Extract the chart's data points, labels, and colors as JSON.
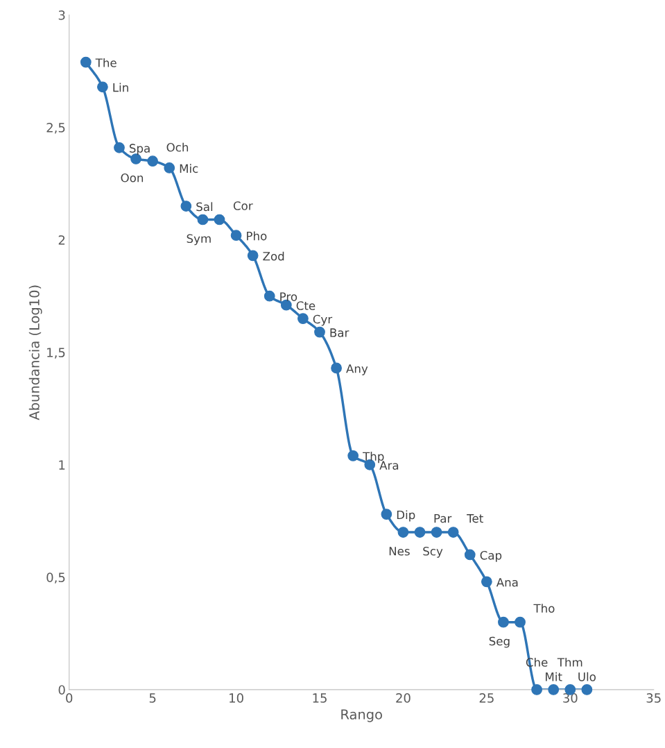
{
  "chart_data": {
    "type": "line",
    "xlabel": "Rango",
    "ylabel": "Abundancia (Log10)",
    "x": [
      1,
      2,
      3,
      4,
      5,
      6,
      7,
      8,
      9,
      10,
      11,
      12,
      13,
      14,
      15,
      16,
      17,
      18,
      19,
      20,
      21,
      22,
      23,
      24,
      25,
      26,
      27,
      28,
      29,
      30,
      31
    ],
    "series": [
      {
        "color": "#2e75b6",
        "values": [
          2.79,
          2.68,
          2.41,
          2.36,
          2.35,
          2.32,
          2.15,
          2.09,
          2.09,
          2.02,
          1.93,
          1.75,
          1.71,
          1.65,
          1.59,
          1.43,
          1.04,
          1.0,
          0.78,
          0.7,
          0.7,
          0.7,
          0.7,
          0.6,
          0.48,
          0.3,
          0.3,
          0,
          0,
          0,
          0
        ]
      }
    ],
    "marker": "circle",
    "line_style": "solid",
    "grid": false,
    "legend": false,
    "xlim": [
      0,
      35
    ],
    "xticks": [
      0,
      5,
      10,
      15,
      20,
      25,
      30,
      35
    ],
    "ylim": [
      0,
      3
    ],
    "yticks": [
      0,
      {
        "value": 0.5,
        "label": "0,5"
      },
      1,
      {
        "value": 1.5,
        "label": "1,5"
      },
      2,
      {
        "value": 2.5,
        "label": "2,5"
      },
      3
    ],
    "annotations": [
      {
        "text": "The",
        "x": 1,
        "y": 2.79
      },
      {
        "text": "Lin",
        "x": 2,
        "y": 2.68
      },
      {
        "text": "Spa",
        "x": 3,
        "y": 2.41
      },
      {
        "text": "Oon",
        "x": 4,
        "y": 2.36
      },
      {
        "text": "Och",
        "x": 5,
        "y": 2.35
      },
      {
        "text": "Mic",
        "x": 6,
        "y": 2.32
      },
      {
        "text": "Sal",
        "x": 7,
        "y": 2.15
      },
      {
        "text": "Sym",
        "x": 8,
        "y": 2.09
      },
      {
        "text": "Cor",
        "x": 9,
        "y": 2.09
      },
      {
        "text": "Pho",
        "x": 10,
        "y": 2.02
      },
      {
        "text": "Zod",
        "x": 11,
        "y": 1.93
      },
      {
        "text": "Pro",
        "x": 12,
        "y": 1.75
      },
      {
        "text": "Cte",
        "x": 13,
        "y": 1.71
      },
      {
        "text": "Cyr",
        "x": 14,
        "y": 1.65
      },
      {
        "text": "Bar",
        "x": 15,
        "y": 1.59
      },
      {
        "text": "Any",
        "x": 16,
        "y": 1.43
      },
      {
        "text": "Thp",
        "x": 17,
        "y": 1.04
      },
      {
        "text": "Ara",
        "x": 18,
        "y": 1.0
      },
      {
        "text": "Dip",
        "x": 19,
        "y": 0.78
      },
      {
        "text": "Nes",
        "x": 20,
        "y": 0.7
      },
      {
        "text": "Par",
        "x": 21,
        "y": 0.7
      },
      {
        "text": "Scy",
        "x": 22,
        "y": 0.7
      },
      {
        "text": "Tet",
        "x": 23,
        "y": 0.7
      },
      {
        "text": "Cap",
        "x": 24,
        "y": 0.6
      },
      {
        "text": "Ana",
        "x": 25,
        "y": 0.48
      },
      {
        "text": "Seg",
        "x": 26,
        "y": 0.3
      },
      {
        "text": "Tho",
        "x": 27,
        "y": 0.3
      },
      {
        "text": "Che",
        "x": 28,
        "y": 0
      },
      {
        "text": "Mit",
        "x": 29,
        "y": 0
      },
      {
        "text": "Thm",
        "x": 30,
        "y": 0
      },
      {
        "text": "Ulo",
        "x": 31,
        "y": 0
      }
    ]
  }
}
